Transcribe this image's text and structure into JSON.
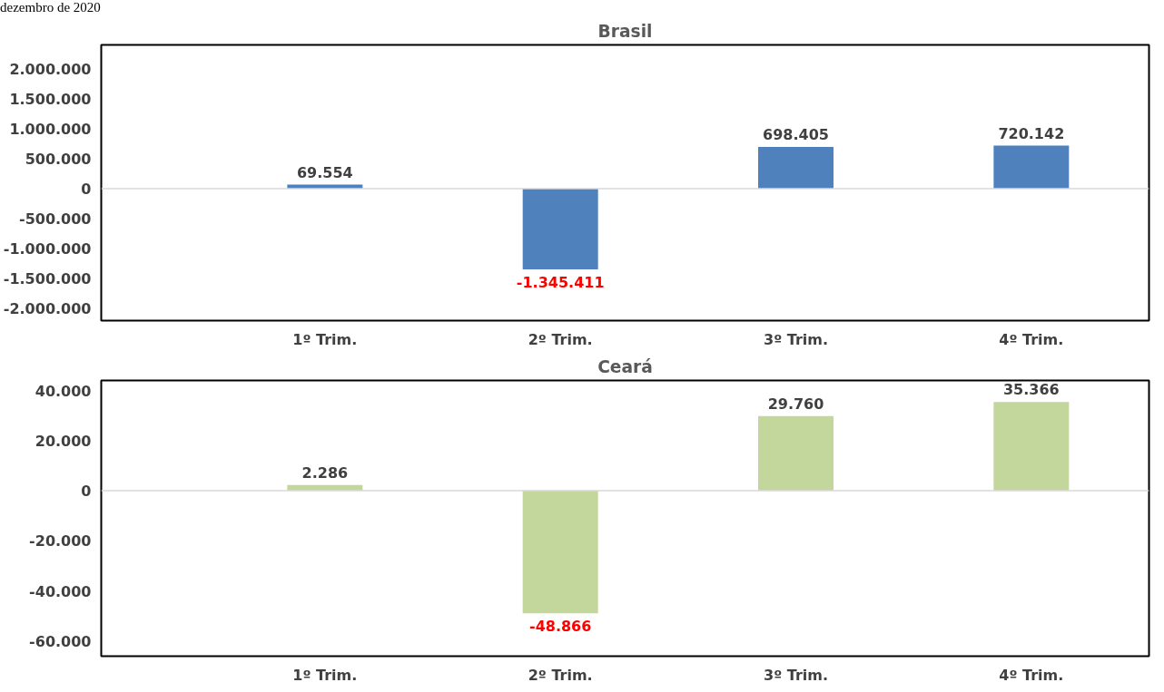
{
  "chart_data": [
    {
      "type": "bar",
      "title": "Brasil",
      "annotations": [
        "dezembro de 2020"
      ],
      "categories": [
        "1º Trim.",
        "2º Trim.",
        "3º Trim.",
        "4º Trim."
      ],
      "values": [
        69554,
        -1345411,
        698405,
        720142
      ],
      "value_labels": [
        "69.554",
        "-1.345.411",
        "698.405",
        "720.142"
      ],
      "color": "#4f81bd",
      "ylim": [
        -2200000,
        2400000
      ],
      "yticks": [
        {
          "value": -2000000,
          "label": "-2.000.000"
        },
        {
          "value": -1500000,
          "label": "-1.500.000"
        },
        {
          "value": -1000000,
          "label": "-1.000.000"
        },
        {
          "value": -500000,
          "label": "-500.000"
        },
        0,
        {
          "value": 500000,
          "label": "500.000"
        },
        {
          "value": 1000000,
          "label": "1.000.000"
        },
        {
          "value": 1500000,
          "label": "1.500.000"
        },
        {
          "value": 2000000,
          "label": "2.000.000"
        }
      ],
      "grid": false,
      "ref_lines": [
        {
          "axis": "y",
          "value": 0,
          "color": "#d9d9d9"
        }
      ]
    },
    {
      "type": "bar",
      "title": "Ceará",
      "categories": [
        "1º Trim.",
        "2º Trim.",
        "3º Trim.",
        "4º Trim."
      ],
      "values": [
        2286,
        -48866,
        29760,
        35366
      ],
      "value_labels": [
        "2.286",
        "-48.866",
        "29.760",
        "35.366"
      ],
      "color": "#c3d69b",
      "ylim": [
        -66000,
        44000
      ],
      "yticks": [
        {
          "value": -60000,
          "label": "-60.000"
        },
        {
          "value": -40000,
          "label": "-40.000"
        },
        {
          "value": -20000,
          "label": "-20.000"
        },
        0,
        {
          "value": 20000,
          "label": "20.000"
        },
        {
          "value": 40000,
          "label": "40.000"
        }
      ],
      "grid": false,
      "ref_lines": [
        {
          "axis": "y",
          "value": 0,
          "color": "#d9d9d9"
        }
      ]
    }
  ]
}
